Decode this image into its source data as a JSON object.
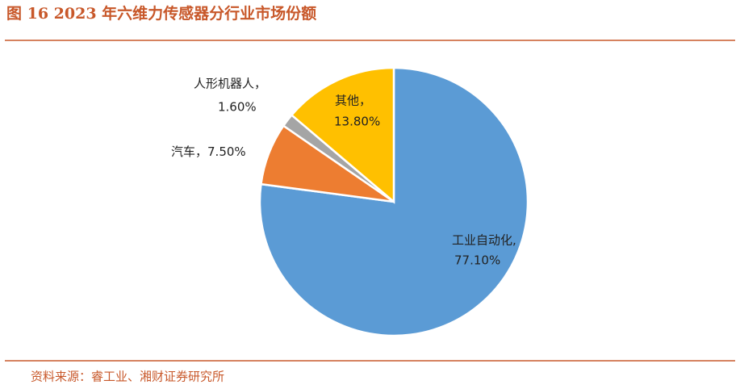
{
  "chart_data": {
    "type": "pie",
    "title": "图 16 2023 年六维力传感器分行业市场份额",
    "categories": [
      "工业自动化,",
      "汽车，",
      "人形机器人，",
      "其他，"
    ],
    "values": [
      77.1,
      7.5,
      1.6,
      13.8
    ],
    "value_labels": [
      "77.10%",
      "7.50%",
      "1.60%",
      "13.80%"
    ],
    "colors": [
      "#5b9bd5",
      "#ed7d31",
      "#a5a5a5",
      "#ffc000"
    ],
    "source": "资料来源：睿工业、湘财证券研究所"
  }
}
